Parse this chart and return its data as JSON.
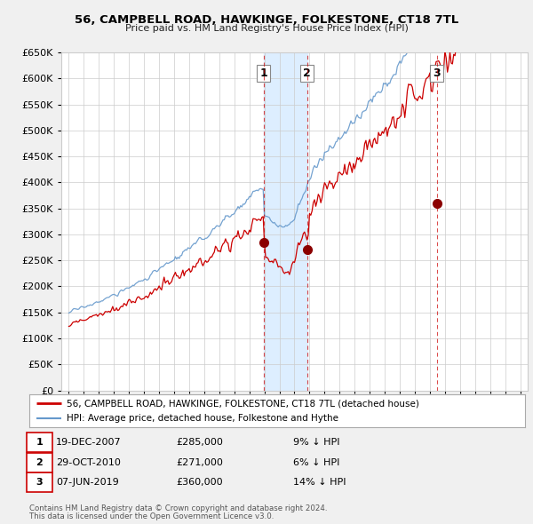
{
  "title": "56, CAMPBELL ROAD, HAWKINGE, FOLKESTONE, CT18 7TL",
  "subtitle": "Price paid vs. HM Land Registry's House Price Index (HPI)",
  "red_label": "56, CAMPBELL ROAD, HAWKINGE, FOLKESTONE, CT18 7TL (detached house)",
  "blue_label": "HPI: Average price, detached house, Folkestone and Hythe",
  "transactions": [
    {
      "num": 1,
      "date": "19-DEC-2007",
      "price": "£285,000",
      "pct": "9% ↓ HPI",
      "year": 2007.96,
      "price_val": 285000
    },
    {
      "num": 2,
      "date": "29-OCT-2010",
      "price": "£271,000",
      "pct": "6% ↓ HPI",
      "year": 2010.83,
      "price_val": 271000
    },
    {
      "num": 3,
      "date": "07-JUN-2019",
      "price": "£360,000",
      "pct": "14% ↓ HPI",
      "year": 2019.46,
      "price_val": 360000
    }
  ],
  "footer1": "Contains HM Land Registry data © Crown copyright and database right 2024.",
  "footer2": "This data is licensed under the Open Government Licence v3.0.",
  "ylim": [
    0,
    650000
  ],
  "yticks": [
    0,
    50000,
    100000,
    150000,
    200000,
    250000,
    300000,
    350000,
    400000,
    450000,
    500000,
    550000,
    600000,
    650000
  ],
  "bg_color": "#f0f0f0",
  "plot_bg": "#ffffff",
  "red_color": "#cc0000",
  "blue_color": "#6699cc",
  "shade_color": "#ddeeff"
}
